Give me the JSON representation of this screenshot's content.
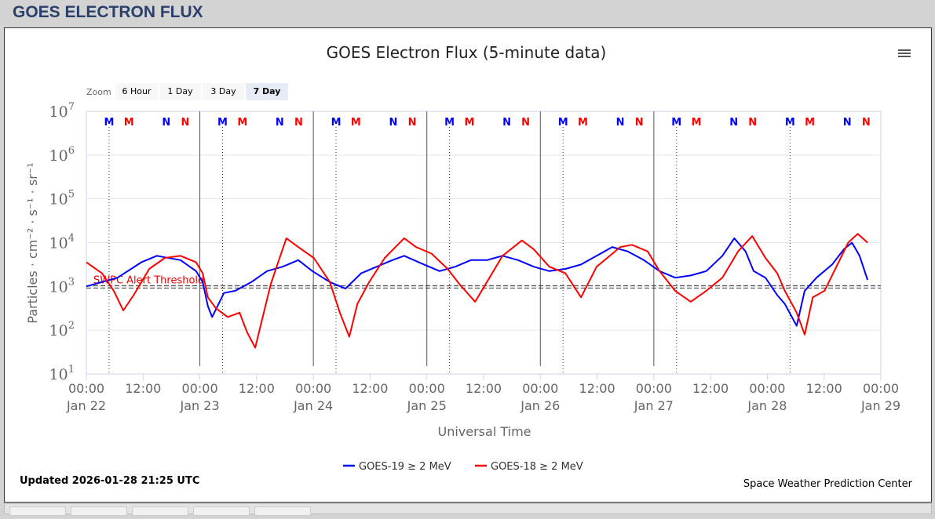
{
  "header": {
    "title": "GOES ELECTRON FLUX"
  },
  "footer": {
    "updated": "Updated 2026-01-28 21:25 UTC",
    "credit": "Space Weather Prediction Center"
  },
  "zoom": {
    "label": "Zoom",
    "buttons": [
      "6 Hour",
      "1 Day",
      "3 Day",
      "7 Day"
    ],
    "active": "7 Day"
  },
  "colors": {
    "goes19": "#0000ff",
    "goes18": "#ff0000"
  },
  "chart_data": {
    "type": "line",
    "title": "GOES Electron Flux (5-minute data)",
    "xlabel": "Universal Time",
    "ylabel": "Particles · cm⁻² · s⁻¹ · sr⁻¹",
    "yscale": "log",
    "ylim": [
      10,
      10000000
    ],
    "ytick_labels": [
      {
        "b": "10",
        "e": "1"
      },
      {
        "b": "10",
        "e": "2"
      },
      {
        "b": "10",
        "e": "3"
      },
      {
        "b": "10",
        "e": "4"
      },
      {
        "b": "10",
        "e": "5"
      },
      {
        "b": "10",
        "e": "6"
      },
      {
        "b": "10",
        "e": "7"
      }
    ],
    "x_unit": "hours since Jan 22 00:00 UTC",
    "xlim": [
      0,
      168
    ],
    "xtick_labels": [
      [
        "00:00",
        "Jan 22"
      ],
      [
        "12:00",
        ""
      ],
      [
        "00:00",
        "Jan 23"
      ],
      [
        "12:00",
        ""
      ],
      [
        "00:00",
        "Jan 24"
      ],
      [
        "12:00",
        ""
      ],
      [
        "00:00",
        "Jan 25"
      ],
      [
        "12:00",
        ""
      ],
      [
        "00:00",
        "Jan 26"
      ],
      [
        "12:00",
        ""
      ],
      [
        "00:00",
        "Jan 27"
      ],
      [
        "12:00",
        ""
      ],
      [
        "00:00",
        "Jan 28"
      ],
      [
        "12:00",
        ""
      ],
      [
        "00:00",
        "Jan 29"
      ]
    ],
    "threshold": {
      "label": "SWPC Alert Threshold",
      "value": 1000
    },
    "legend": {
      "placement": "bottom-center"
    },
    "markers": {
      "offsets_hours": [
        {
          "t": "M",
          "h": 4.8,
          "color": "#0000ff"
        },
        {
          "t": "M",
          "h": 9,
          "color": "#ff0000"
        },
        {
          "t": "N",
          "h": 16.9,
          "color": "#0000ff"
        },
        {
          "t": "N",
          "h": 20.9,
          "color": "#ff0000"
        }
      ],
      "days": 7
    },
    "series": [
      {
        "name": "GOES-19 ≥ 2 MeV",
        "color": "#0000ff",
        "log10_points": [
          [
            0,
            3.0
          ],
          [
            6.6,
            3.2
          ],
          [
            11.6,
            3.55
          ],
          [
            14.9,
            3.7
          ],
          [
            19.9,
            3.6
          ],
          [
            23.2,
            3.35
          ],
          [
            24.6,
            3.1
          ],
          [
            25.7,
            2.55
          ],
          [
            26.6,
            2.3
          ],
          [
            29.1,
            2.85
          ],
          [
            31.5,
            2.9
          ],
          [
            34.9,
            3.1
          ],
          [
            38.2,
            3.35
          ],
          [
            41.5,
            3.45
          ],
          [
            44.8,
            3.6
          ],
          [
            47.8,
            3.35
          ],
          [
            51.5,
            3.1
          ],
          [
            54.8,
            2.95
          ],
          [
            58.1,
            3.3
          ],
          [
            61.4,
            3.45
          ],
          [
            64.7,
            3.6
          ],
          [
            67.2,
            3.7
          ],
          [
            71.4,
            3.5
          ],
          [
            74.7,
            3.35
          ],
          [
            78,
            3.45
          ],
          [
            81.3,
            3.6
          ],
          [
            84.7,
            3.6
          ],
          [
            88,
            3.7
          ],
          [
            91.3,
            3.6
          ],
          [
            94.6,
            3.45
          ],
          [
            97.9,
            3.35
          ],
          [
            101.3,
            3.4
          ],
          [
            104.6,
            3.5
          ],
          [
            107.9,
            3.7
          ],
          [
            111.2,
            3.9
          ],
          [
            114.5,
            3.8
          ],
          [
            117.9,
            3.6
          ],
          [
            121.2,
            3.35
          ],
          [
            124.5,
            3.2
          ],
          [
            127.8,
            3.25
          ],
          [
            131.1,
            3.35
          ],
          [
            134.5,
            3.7
          ],
          [
            137,
            4.1
          ],
          [
            139.4,
            3.8
          ],
          [
            141.1,
            3.35
          ],
          [
            143.6,
            3.2
          ],
          [
            146.1,
            2.8
          ],
          [
            147.7,
            2.6
          ],
          [
            150.2,
            2.1
          ],
          [
            151.9,
            2.9
          ],
          [
            154.4,
            3.2
          ],
          [
            157.7,
            3.5
          ],
          [
            160.2,
            3.85
          ],
          [
            161.9,
            4.0
          ],
          [
            163.5,
            3.7
          ],
          [
            165.2,
            3.15
          ]
        ]
      },
      {
        "name": "GOES-18 ≥ 2 MeV",
        "color": "#ff0000",
        "log10_points": [
          [
            0,
            3.55
          ],
          [
            3.3,
            3.3
          ],
          [
            5.8,
            2.9
          ],
          [
            7.8,
            2.45
          ],
          [
            10,
            2.8
          ],
          [
            13.3,
            3.4
          ],
          [
            16.6,
            3.65
          ],
          [
            19.9,
            3.7
          ],
          [
            23.2,
            3.55
          ],
          [
            24.6,
            3.3
          ],
          [
            25.7,
            2.75
          ],
          [
            27.4,
            2.5
          ],
          [
            29.9,
            2.3
          ],
          [
            32.4,
            2.4
          ],
          [
            34,
            1.95
          ],
          [
            35.7,
            1.6
          ],
          [
            37.4,
            2.35
          ],
          [
            39,
            3.05
          ],
          [
            40.7,
            3.6
          ],
          [
            42.3,
            4.1
          ],
          [
            44.8,
            3.9
          ],
          [
            48.1,
            3.65
          ],
          [
            51.5,
            3.1
          ],
          [
            53.6,
            2.4
          ],
          [
            55.6,
            1.85
          ],
          [
            57.3,
            2.6
          ],
          [
            59.8,
            3.1
          ],
          [
            63.1,
            3.65
          ],
          [
            67.2,
            4.1
          ],
          [
            69.7,
            3.9
          ],
          [
            73,
            3.75
          ],
          [
            76.4,
            3.4
          ],
          [
            78.9,
            3.05
          ],
          [
            82.2,
            2.65
          ],
          [
            84.7,
            3.1
          ],
          [
            88,
            3.7
          ],
          [
            92.1,
            4.05
          ],
          [
            94.6,
            3.85
          ],
          [
            97.9,
            3.45
          ],
          [
            101.3,
            3.3
          ],
          [
            104.6,
            2.75
          ],
          [
            107.9,
            3.45
          ],
          [
            112.9,
            3.9
          ],
          [
            115.4,
            3.95
          ],
          [
            118.7,
            3.8
          ],
          [
            121.2,
            3.35
          ],
          [
            124.5,
            2.9
          ],
          [
            127.8,
            2.65
          ],
          [
            131.1,
            2.9
          ],
          [
            134.5,
            3.2
          ],
          [
            137.8,
            3.8
          ],
          [
            140.8,
            4.15
          ],
          [
            143.6,
            3.65
          ],
          [
            146.1,
            3.3
          ],
          [
            147.7,
            2.9
          ],
          [
            150.2,
            2.4
          ],
          [
            151.9,
            1.9
          ],
          [
            153.6,
            2.75
          ],
          [
            156.1,
            2.9
          ],
          [
            158.6,
            3.45
          ],
          [
            161.1,
            4.0
          ],
          [
            163.1,
            4.2
          ],
          [
            165.2,
            4.0
          ]
        ]
      }
    ]
  }
}
